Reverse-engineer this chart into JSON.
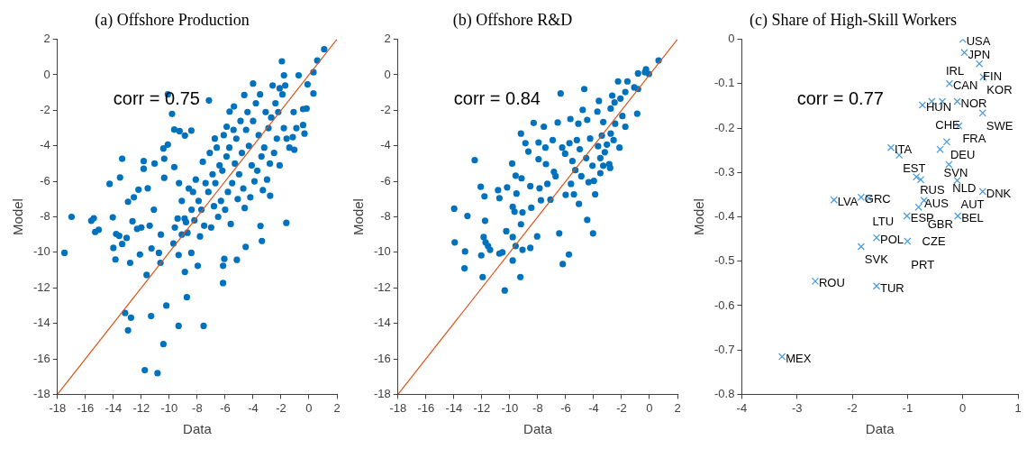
{
  "chart_data": [
    {
      "type": "scatter",
      "title": "(a) Offshore Production",
      "xlabel": "Data",
      "ylabel": "Model",
      "xlim": [
        -18,
        2
      ],
      "ylim": [
        -18,
        2
      ],
      "xticks": [
        -18,
        -16,
        -14,
        -12,
        -10,
        -8,
        -6,
        -4,
        -2,
        0,
        2
      ],
      "yticks": [
        -18,
        -16,
        -14,
        -12,
        -10,
        -8,
        -6,
        -4,
        -2,
        0,
        2
      ],
      "grid": false,
      "annotations": [
        "corr = 0.75"
      ],
      "series": [
        {
          "type": "scatter",
          "marker": "circle",
          "color": "#0072bd",
          "x": [
            -17.5,
            -16.99,
            -15.58,
            -15.4,
            -15.3,
            -15.05,
            -14.27,
            -13.52,
            -13.37,
            -14.04,
            -14.0,
            -13.85,
            -13.8,
            -13.58,
            -13.37,
            -13.16,
            -12.95,
            -12.74,
            -12.8,
            -13.05,
            -12.95,
            -12.53,
            -12.2,
            -12.1,
            -12.63,
            -12.3,
            -12.0,
            -11.83,
            -11.83,
            -11.62,
            -11.75,
            -10.84,
            -11.3,
            -11.05,
            -11.54,
            -11.27,
            -10.74,
            -10.36,
            -10.42,
            -10.1,
            -10.36,
            -10.63,
            -10.21,
            -10.42,
            -9.64,
            -9.26,
            -8.88,
            -8.42,
            -9.64,
            -9.33,
            -9.33,
            -8.88,
            -8.74,
            -7.54,
            -7.96,
            -8.42,
            -7.16,
            -6.74,
            -6.15,
            -6.06,
            -6.15,
            -5.16,
            -4.53,
            -3.37,
            -3.47,
            -2.78,
            -1.62,
            -4.0,
            -1.94,
            1.09,
            0.59,
            0.32,
            -0.1,
            0.32,
            -0.17,
            -0.42,
            -0.42,
            -0.32,
            -1.05,
            -1.16,
            -1.79,
            -0.74,
            -2.1,
            -4.63,
            -5.37,
            -5.68,
            -5.89,
            -9.1,
            -8.9,
            -9.6,
            -8.6,
            -8.4,
            -8.7,
            -8.1,
            -7.9,
            -8.2,
            -7.8,
            -7.6,
            -7.4,
            -7.7,
            -7.5,
            -7.1,
            -6.9,
            -7.2,
            -6.8,
            -7.0,
            -6.6,
            -6.4,
            -6.7,
            -6.3,
            -6.5,
            -6.1,
            -5.9,
            -6.2,
            -5.8,
            -6.0,
            -5.6,
            -5.4,
            -5.7,
            -5.3,
            -5.5,
            -5.1,
            -4.9,
            -5.2,
            -4.8,
            -5.0,
            -4.7,
            -4.6,
            -4.4,
            -4.5,
            -4.3,
            -4.1,
            -3.9,
            -4.2,
            -3.8,
            -4.0,
            -3.6,
            -3.4,
            -3.7,
            -3.3,
            -3.5,
            -3.1,
            -2.9,
            -3.2,
            -2.8,
            -3.0,
            -2.6,
            -2.4,
            -2.7,
            -2.3,
            -2.5,
            -2.1,
            -1.9,
            -2.2,
            -1.8,
            -1.6,
            -1.4,
            -1.7,
            -1.1,
            -0.9,
            -10.1,
            -9.8,
            -9.4,
            -10.6,
            -11.1,
            -11.4,
            -9.1,
            -8.8,
            -9.3,
            -9.7,
            -8.3
          ],
          "values": [
            -10.03,
            -8.0,
            -8.22,
            -8.08,
            -8.85,
            -8.73,
            -6.14,
            -5.78,
            -4.73,
            -8.03,
            -9.75,
            -10.4,
            -8.97,
            -9.07,
            -9.53,
            -13.42,
            -14.39,
            -13.68,
            -10.59,
            -9.19,
            -7.15,
            -6.9,
            -6.47,
            -10.12,
            -8.25,
            -8.68,
            -8.6,
            -4.86,
            -5.29,
            -11.27,
            -16.64,
            -16.81,
            -13.59,
            -5.0,
            -6.39,
            -9.78,
            -10.03,
            -4.73,
            -4.15,
            -3.93,
            -5.8,
            -10.59,
            -13.0,
            -15.17,
            -3.08,
            -3.17,
            -3.42,
            -3.14,
            -5.2,
            -14.14,
            -10.15,
            -11.1,
            -12.53,
            -14.14,
            -10.76,
            -10.03,
            -1.44,
            -3.59,
            -11.73,
            -10.37,
            -10.76,
            -10.42,
            -9.69,
            -9.36,
            -8.51,
            -6.81,
            -8.34,
            -0.49,
            0.76,
            1.44,
            0.81,
            0.14,
            -0.54,
            -1.05,
            -1.9,
            -1.93,
            -2.83,
            -3.31,
            -4.22,
            -3.51,
            -0.03,
            -0.03,
            -0.76,
            -1.14,
            -1.78,
            -2.07,
            -2.92,
            -7.1,
            -8.1,
            -8.6,
            -6.4,
            -7.6,
            -8.9,
            -5.9,
            -7.1,
            -8.2,
            -9.1,
            -4.9,
            -6.1,
            -7.6,
            -8.5,
            -4.4,
            -5.6,
            -6.6,
            -7.4,
            -8.6,
            -4.1,
            -5.1,
            -6.1,
            -7.1,
            -8.0,
            -3.4,
            -4.6,
            -5.4,
            -6.6,
            -7.6,
            -8.4,
            -3.1,
            -4.1,
            -5.0,
            -6.1,
            -7.0,
            -2.6,
            -3.6,
            -4.4,
            -5.6,
            -6.4,
            -7.5,
            -2.1,
            -3.1,
            -4.0,
            -5.1,
            -6.0,
            -6.9,
            -1.6,
            -2.6,
            -3.4,
            -4.6,
            -5.4,
            -6.5,
            -1.1,
            -2.1,
            -3.0,
            -4.1,
            -5.0,
            -5.9,
            -0.6,
            -1.6,
            -2.4,
            -3.6,
            -4.4,
            -5.1,
            -1.1,
            -2.1,
            -3.0,
            -3.6,
            -4.1,
            -0.6,
            -2.1,
            -3.0,
            -1.1,
            -2.2,
            -8.1,
            -9.0,
            -7.6,
            -8.5,
            -9.0,
            -8.3,
            -6.1,
            -9.5,
            -6.6
          ]
        },
        {
          "type": "line",
          "color": "#d95319",
          "x": [
            -18,
            2
          ],
          "values": [
            -18,
            2
          ]
        }
      ]
    },
    {
      "type": "scatter",
      "title": "(b) Offshore R&D",
      "xlabel": "Data",
      "ylabel": "Model",
      "xlim": [
        -18,
        2
      ],
      "ylim": [
        -18,
        2
      ],
      "xticks": [
        -18,
        -16,
        -14,
        -12,
        -10,
        -8,
        -6,
        -4,
        -2,
        0,
        2
      ],
      "yticks": [
        -18,
        -16,
        -14,
        -12,
        -10,
        -8,
        -6,
        -4,
        -2,
        0,
        2
      ],
      "grid": false,
      "annotations": [
        "corr = 0.84"
      ],
      "series": [
        {
          "type": "scatter",
          "marker": "circle",
          "color": "#0072bd",
          "x": [
            -13.98,
            -13.94,
            -13.03,
            -13.2,
            -13.24,
            -12.51,
            -12.08,
            -12.04,
            -11.94,
            -11.81,
            -11.77,
            -11.87,
            -11.73,
            -11.56,
            -11.41,
            -10.84,
            -10.74,
            -10.74,
            -10.53,
            -10.36,
            -10.25,
            -10.19,
            -9.83,
            -9.79,
            -9.79,
            -9.79,
            -9.66,
            -9.58,
            -9.52,
            -9.58,
            -9.24,
            -9.2,
            -9.09,
            -9.2,
            -9.16,
            -9.09,
            -8.88,
            -8.67,
            -8.53,
            -8.53,
            -8.46,
            -8.29,
            -8.04,
            -7.94,
            -7.94,
            -7.87,
            -7.77,
            -7.56,
            -7.45,
            -7.41,
            -7.31,
            -7.09,
            -6.93,
            -6.84,
            -6.72,
            -6.57,
            -6.46,
            -6.25,
            -6.21,
            -6.04,
            -6.0,
            -6.36,
            -5.77,
            -5.66,
            -5.62,
            -5.52,
            -5.41,
            -5.31,
            -5.09,
            -5.05,
            -4.99,
            -4.88,
            -4.78,
            -4.67,
            -4.53,
            -4.46,
            -4.46,
            -4.36,
            -4.25,
            -4.08,
            -4.04,
            -3.98,
            -3.89,
            -3.73,
            -3.68,
            -3.62,
            -3.52,
            -3.41,
            -3.31,
            -3.2,
            -3.05,
            -2.88,
            -2.78,
            -2.78,
            -2.67,
            -2.82,
            -2.57,
            -2.46,
            -2.25,
            -2.15,
            -2.08,
            -1.94,
            -1.73,
            -1.73,
            -1.58,
            -1.09,
            -0.88,
            -0.82,
            -0.82,
            -0.25,
            -0.04,
            0.65,
            -0.32,
            -2.5,
            -3.52,
            -3.31,
            -5.2,
            -5.73
          ],
          "values": [
            -7.54,
            -9.44,
            -7.95,
            -9.95,
            -10.9,
            -4.81,
            -6.31,
            -10.17,
            -11.39,
            -6.85,
            -8.22,
            -9.14,
            -9.44,
            -9.64,
            -9.86,
            -6.5,
            -6.95,
            -10.07,
            -10.0,
            -12.15,
            -8.81,
            -6.34,
            -5.0,
            -10.46,
            -9.14,
            -7.44,
            -7.71,
            -5.68,
            -6.69,
            -9.64,
            -11.39,
            -8.42,
            -9.86,
            -3.31,
            -5.83,
            -7.75,
            -3.85,
            -4.32,
            -6.27,
            -9.75,
            -7.49,
            -2.71,
            -9.1,
            -3.81,
            -4.75,
            -6.39,
            -7.07,
            -2.92,
            -4.1,
            -5.03,
            -6.14,
            -7.03,
            -3.68,
            -5.46,
            -5.71,
            -2.69,
            -8.93,
            -4.1,
            -10.66,
            -4.44,
            -6.76,
            -1.05,
            -10.12,
            -2.49,
            -6.14,
            -4.86,
            -6.73,
            -5.37,
            -2.75,
            -7.27,
            -4.19,
            -5.71,
            -1.98,
            -0.8,
            -4.69,
            -2.54,
            -8.17,
            -6.05,
            -3.59,
            -5.12,
            -8.93,
            -5.97,
            -6.73,
            -2.07,
            -4.02,
            -1.47,
            -4.69,
            -3.42,
            -2.66,
            -4.36,
            -3.93,
            -5.03,
            -3.31,
            -1.9,
            -1.17,
            -5.24,
            -3.68,
            -2.75,
            -0.37,
            -4.1,
            -1.34,
            -2.32,
            -2.92,
            -0.97,
            -0.37,
            -0.71,
            -2.19,
            0.08,
            -0.8,
            0.31,
            0.05,
            0.81,
            0.14,
            -1.56,
            -5.54,
            -5.12,
            -3.68,
            -3.85
          ]
        },
        {
          "type": "line",
          "color": "#d95319",
          "x": [
            -18,
            2
          ],
          "values": [
            -18,
            2
          ]
        }
      ]
    },
    {
      "type": "scatter",
      "title": "(c) Share of High-Skill Workers",
      "xlabel": "Data",
      "ylabel": "Model",
      "xlim": [
        -4,
        1
      ],
      "ylim": [
        -0.8,
        0
      ],
      "xticks": [
        -4,
        -3,
        -2,
        -1,
        0,
        1
      ],
      "yticks": [
        -0.8,
        -0.7,
        -0.6,
        -0.5,
        -0.4,
        -0.3,
        -0.2,
        -0.1,
        0
      ],
      "grid": false,
      "annotations": [
        "corr = 0.77",
        {
          "text": "USA",
          "x": 0.0,
          "y": 0.0
        },
        {
          "text": "JPN",
          "x": 0.03,
          "y": -0.03
        },
        {
          "text": "FIN",
          "x": 0.3,
          "y": -0.055
        },
        {
          "text": "KOR",
          "x": 0.37,
          "y": -0.085
        },
        {
          "text": "CAN",
          "x": -0.24,
          "y": -0.1
        },
        {
          "text": "HUN",
          "x": -0.73,
          "y": -0.148
        },
        {
          "text": "CHE",
          "x": -0.56,
          "y": -0.14
        },
        {
          "text": "IRL",
          "x": -0.37,
          "y": -0.14
        },
        {
          "text": "NOR",
          "x": -0.1,
          "y": -0.14
        },
        {
          "text": "SWE",
          "x": 0.36,
          "y": -0.166
        },
        {
          "text": "FRA",
          "x": -0.07,
          "y": -0.195
        },
        {
          "text": "DEU",
          "x": -0.29,
          "y": -0.231
        },
        {
          "text": "SVN",
          "x": -0.41,
          "y": -0.248
        },
        {
          "text": "ITA",
          "x": -1.3,
          "y": -0.244
        },
        {
          "text": "EST",
          "x": -1.15,
          "y": -0.261
        },
        {
          "text": "NLD",
          "x": -0.25,
          "y": -0.282
        },
        {
          "text": "RUS",
          "x": -0.84,
          "y": -0.31
        },
        {
          "text": "AUS",
          "x": -0.76,
          "y": -0.316
        },
        {
          "text": "AUT",
          "x": -0.1,
          "y": -0.318
        },
        {
          "text": "DNK",
          "x": 0.36,
          "y": -0.343
        },
        {
          "text": "LVA",
          "x": -2.33,
          "y": -0.362
        },
        {
          "text": "GRC",
          "x": -1.84,
          "y": -0.356
        },
        {
          "text": "LTU",
          "x": -1.7,
          "y": -0.358
        },
        {
          "text": "GBR",
          "x": -0.7,
          "y": -0.363
        },
        {
          "text": "CZE",
          "x": -0.8,
          "y": -0.378
        },
        {
          "text": "ESP",
          "x": -1.01,
          "y": -0.398
        },
        {
          "text": "BEL",
          "x": -0.09,
          "y": -0.398
        },
        {
          "text": "POL",
          "x": -1.56,
          "y": -0.447
        },
        {
          "text": "PRT",
          "x": -1.0,
          "y": -0.455
        },
        {
          "text": "SVK",
          "x": -1.84,
          "y": -0.467
        },
        {
          "text": "ROU",
          "x": -2.67,
          "y": -0.545
        },
        {
          "text": "TUR",
          "x": -1.56,
          "y": -0.556
        },
        {
          "text": "MEX",
          "x": -3.27,
          "y": -0.715
        }
      ],
      "series": [
        {
          "type": "scatter",
          "marker": "cross",
          "color": "#4d9ed8",
          "x": [
            0.0,
            0.03,
            0.3,
            0.37,
            -0.24,
            -0.73,
            -0.56,
            -0.37,
            -0.1,
            0.36,
            -0.07,
            -0.29,
            -0.41,
            -1.3,
            -1.15,
            -0.25,
            -0.84,
            -0.76,
            -0.1,
            0.36,
            -2.33,
            -1.84,
            -1.7,
            -0.7,
            -0.8,
            -1.01,
            -0.09,
            -1.56,
            -1.0,
            -1.84,
            -2.67,
            -1.56,
            -3.27
          ],
          "values": [
            0.0,
            -0.03,
            -0.055,
            -0.085,
            -0.1,
            -0.148,
            -0.14,
            -0.14,
            -0.14,
            -0.166,
            -0.195,
            -0.231,
            -0.248,
            -0.244,
            -0.261,
            -0.282,
            -0.31,
            -0.316,
            -0.318,
            -0.343,
            -0.362,
            -0.356,
            -0.358,
            -0.363,
            -0.378,
            -0.398,
            -0.398,
            -0.447,
            -0.455,
            -0.467,
            -0.545,
            -0.556,
            -0.715
          ]
        }
      ]
    }
  ]
}
